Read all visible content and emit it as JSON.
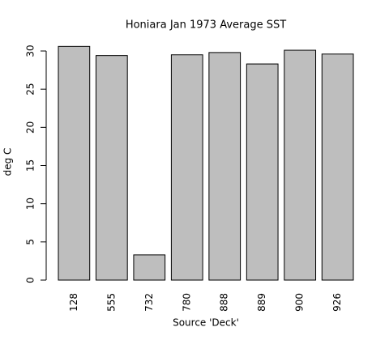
{
  "chart_data": {
    "type": "bar",
    "title": "Honiara Jan 1973 Average SST",
    "x_label": "Source 'Deck'",
    "y_label": "deg C",
    "categories": [
      "128",
      "555",
      "732",
      "780",
      "888",
      "889",
      "900",
      "926"
    ],
    "values": [
      30.6,
      29.4,
      3.3,
      29.5,
      29.8,
      28.3,
      30.1,
      29.6
    ],
    "color": "#bebebe",
    "ylim": [
      0,
      30
    ],
    "yticks": [
      0,
      5,
      10,
      15,
      20,
      25,
      30
    ],
    "grid": false
  }
}
